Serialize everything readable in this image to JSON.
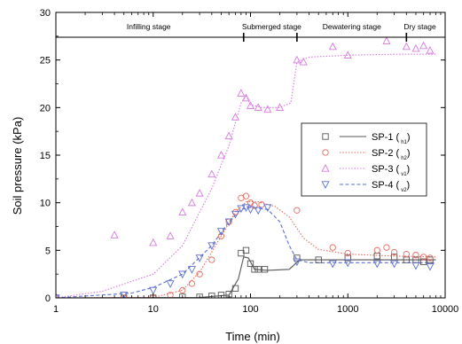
{
  "chart_data": {
    "type": "scatter",
    "xlabel": "Time (min)",
    "ylabel": "Soil pressure (kPa)",
    "x_scale": "log",
    "xlim": [
      1,
      10000
    ],
    "ylim": [
      0,
      30
    ],
    "x_ticks": [
      1,
      10,
      100,
      1000,
      10000
    ],
    "x_tick_labels": [
      "1",
      "10",
      "100",
      "1000",
      "10000"
    ],
    "y_ticks": [
      0,
      5,
      10,
      15,
      20,
      25,
      30
    ],
    "y_tick_labels": [
      "0",
      "5",
      "10",
      "15",
      "20",
      "25",
      "30"
    ],
    "grid": false,
    "legend_position": "right",
    "stage_boundaries": [
      85,
      300,
      4000
    ],
    "stages": [
      {
        "label": "Infilling stage",
        "x_center": 9
      },
      {
        "label": "Submerged stage",
        "x_center": 165
      },
      {
        "label": "Dewatering stage",
        "x_center": 1100
      },
      {
        "label": "Dry stage",
        "x_center": 5500
      }
    ],
    "series": [
      {
        "name": "SP-1",
        "subscript": "h1",
        "marker": "square",
        "line_style": "solid",
        "color": "#555555",
        "points": [
          [
            1,
            0
          ],
          [
            5,
            0
          ],
          [
            10,
            0
          ],
          [
            20,
            0.1
          ],
          [
            30,
            0.1
          ],
          [
            40,
            0.2
          ],
          [
            50,
            0.3
          ],
          [
            60,
            0.4
          ],
          [
            70,
            1
          ],
          [
            80,
            4.7
          ],
          [
            90,
            5
          ],
          [
            100,
            3.6
          ],
          [
            110,
            3
          ],
          [
            120,
            3
          ],
          [
            140,
            3
          ],
          [
            300,
            4.2
          ],
          [
            500,
            4
          ],
          [
            1000,
            4.2
          ],
          [
            2000,
            4.4
          ],
          [
            3000,
            4.3
          ],
          [
            4000,
            4
          ],
          [
            5000,
            4
          ],
          [
            6000,
            3.8
          ],
          [
            7000,
            4
          ]
        ],
        "curve": [
          [
            1,
            0
          ],
          [
            30,
            0.05
          ],
          [
            60,
            0.3
          ],
          [
            75,
            2
          ],
          [
            85,
            4.3
          ],
          [
            95,
            4.2
          ],
          [
            110,
            3
          ],
          [
            150,
            2.9
          ],
          [
            250,
            3
          ],
          [
            320,
            4
          ],
          [
            500,
            4
          ],
          [
            2000,
            4
          ],
          [
            8000,
            4
          ]
        ]
      },
      {
        "name": "SP-2",
        "subscript": "h2",
        "marker": "circle",
        "line_style": "dotted",
        "color": "#e8685e",
        "points": [
          [
            1,
            0
          ],
          [
            5,
            0
          ],
          [
            10,
            0
          ],
          [
            15,
            0.3
          ],
          [
            20,
            0.8
          ],
          [
            25,
            1.5
          ],
          [
            30,
            2.5
          ],
          [
            40,
            4
          ],
          [
            50,
            6.5
          ],
          [
            60,
            8
          ],
          [
            70,
            9
          ],
          [
            80,
            10.5
          ],
          [
            90,
            10.7
          ],
          [
            100,
            10
          ],
          [
            110,
            9.7
          ],
          [
            130,
            9.8
          ],
          [
            300,
            9.2
          ],
          [
            700,
            5.3
          ],
          [
            1000,
            4.7
          ],
          [
            2000,
            5
          ],
          [
            2500,
            5.3
          ],
          [
            3000,
            4.8
          ],
          [
            4000,
            4.6
          ],
          [
            5000,
            4.5
          ],
          [
            6000,
            4.3
          ],
          [
            7000,
            4.2
          ]
        ],
        "curve": [
          [
            1,
            0
          ],
          [
            10,
            0.05
          ],
          [
            20,
            0.8
          ],
          [
            30,
            2.7
          ],
          [
            50,
            6.5
          ],
          [
            70,
            9
          ],
          [
            90,
            10.1
          ],
          [
            120,
            10.1
          ],
          [
            180,
            9.6
          ],
          [
            250,
            8.5
          ],
          [
            350,
            6.3
          ],
          [
            500,
            5.1
          ],
          [
            1000,
            4.6
          ],
          [
            3000,
            4.4
          ],
          [
            8000,
            4.3
          ]
        ]
      },
      {
        "name": "SP-3",
        "subscript": "v1",
        "marker": "triangle-up",
        "line_style": "dotted",
        "color": "#d77ae0",
        "points": [
          [
            1,
            0.1
          ],
          [
            4,
            6.6
          ],
          [
            10,
            5.8
          ],
          [
            15,
            6.5
          ],
          [
            20,
            9
          ],
          [
            25,
            10
          ],
          [
            30,
            11
          ],
          [
            40,
            13
          ],
          [
            50,
            15
          ],
          [
            60,
            17
          ],
          [
            70,
            19
          ],
          [
            80,
            21.5
          ],
          [
            90,
            21
          ],
          [
            100,
            20.2
          ],
          [
            120,
            20
          ],
          [
            150,
            19.8
          ],
          [
            200,
            20
          ],
          [
            300,
            25
          ],
          [
            350,
            24.8
          ],
          [
            700,
            26.4
          ],
          [
            1000,
            25.5
          ],
          [
            2500,
            27
          ],
          [
            4000,
            26.4
          ],
          [
            5000,
            26.2
          ],
          [
            6000,
            26.5
          ],
          [
            7000,
            26
          ]
        ],
        "curve": [
          [
            1,
            0
          ],
          [
            3,
            0.7
          ],
          [
            10,
            2.5
          ],
          [
            20,
            5.5
          ],
          [
            40,
            11.5
          ],
          [
            60,
            16
          ],
          [
            80,
            20.5
          ],
          [
            90,
            21.2
          ],
          [
            100,
            20.3
          ],
          [
            130,
            20
          ],
          [
            200,
            20
          ],
          [
            260,
            20.5
          ],
          [
            300,
            24.8
          ],
          [
            400,
            25.3
          ],
          [
            1000,
            25.5
          ],
          [
            3000,
            25.6
          ],
          [
            8000,
            25.6
          ]
        ]
      },
      {
        "name": "SP-4",
        "subscript": "v2",
        "marker": "triangle-down",
        "line_style": "dashed",
        "color": "#5b6fd0",
        "points": [
          [
            1,
            0
          ],
          [
            5,
            0.3
          ],
          [
            10,
            0.8
          ],
          [
            15,
            1.5
          ],
          [
            20,
            2.5
          ],
          [
            25,
            3
          ],
          [
            30,
            4.2
          ],
          [
            40,
            5.5
          ],
          [
            50,
            7
          ],
          [
            60,
            8
          ],
          [
            70,
            8.8
          ],
          [
            80,
            9.4
          ],
          [
            90,
            9.5
          ],
          [
            100,
            9.3
          ],
          [
            120,
            9.2
          ],
          [
            150,
            9.5
          ],
          [
            300,
            3.8
          ],
          [
            700,
            3.6
          ],
          [
            1000,
            3.7
          ],
          [
            2000,
            3.6
          ],
          [
            3000,
            3.6
          ],
          [
            5000,
            3.4
          ],
          [
            7000,
            3.3
          ]
        ],
        "curve": [
          [
            1,
            0
          ],
          [
            6,
            0.5
          ],
          [
            10,
            1.1
          ],
          [
            20,
            2.5
          ],
          [
            40,
            5.5
          ],
          [
            60,
            8
          ],
          [
            80,
            9.3
          ],
          [
            100,
            9.5
          ],
          [
            150,
            9.3
          ],
          [
            200,
            8
          ],
          [
            250,
            5.5
          ],
          [
            300,
            4
          ],
          [
            400,
            3.7
          ],
          [
            1000,
            3.7
          ],
          [
            8000,
            3.7
          ]
        ]
      }
    ]
  }
}
